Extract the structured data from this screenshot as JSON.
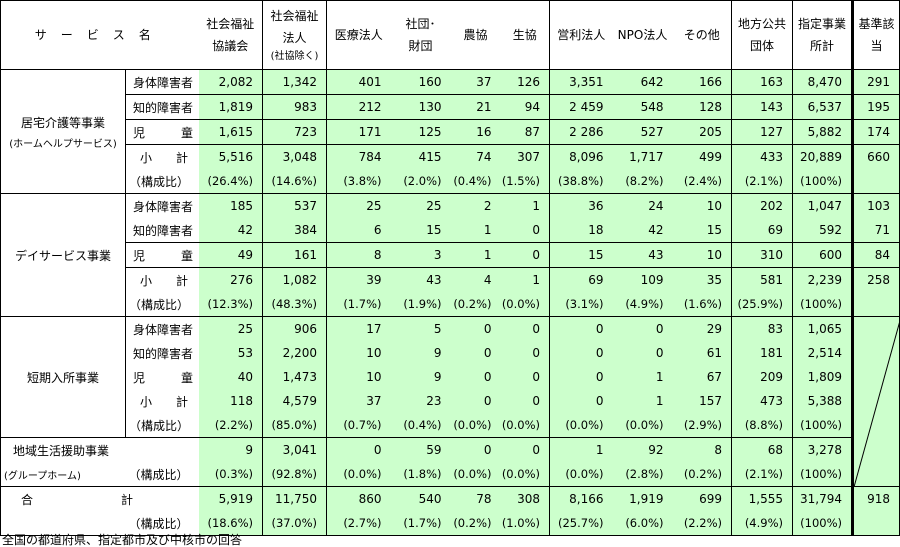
{
  "header": {
    "service_name": "サービス名",
    "columns": [
      {
        "lines": "社会福祉\n協議会"
      },
      {
        "lines": "社会福祉\n法人",
        "note": "(社協除く)"
      },
      {
        "lines": "医療法人"
      },
      {
        "lines": "社団･\n財団"
      },
      {
        "lines": "農協"
      },
      {
        "lines": "生協"
      },
      {
        "lines": "営利法人"
      },
      {
        "lines": "NPO法人"
      },
      {
        "lines": "その他"
      },
      {
        "lines": "地方公共\n団体"
      },
      {
        "lines": "指定事業\n所計"
      },
      {
        "lines": "基準該\n当"
      }
    ]
  },
  "colors": {
    "cell_background": "#ccffcc",
    "border": "#000000"
  },
  "sections": [
    {
      "name": "居宅介護等事業",
      "name_sub": "(ホームヘルプサービス)",
      "rows": [
        {
          "label": "身体障害者",
          "values": [
            "2,082",
            "1,342",
            "401",
            "160",
            "37",
            "126",
            "3,351",
            "642",
            "166",
            "163",
            "8,470"
          ],
          "kijun": "291"
        },
        {
          "label": "知的障害者",
          "values": [
            "1,819",
            "983",
            "212",
            "130",
            "21",
            "94",
            "2 459",
            "548",
            "128",
            "143",
            "6,537"
          ],
          "kijun": "195"
        },
        {
          "label": "児童",
          "values": [
            "1,615",
            "723",
            "171",
            "125",
            "16",
            "87",
            "2 286",
            "527",
            "205",
            "127",
            "5,882"
          ],
          "kijun": "174"
        },
        {
          "label": "小計",
          "values": [
            "5,516",
            "3,048",
            "784",
            "415",
            "74",
            "307",
            "8,096",
            "1,717",
            "499",
            "433",
            "20,889"
          ],
          "kijun": "660"
        },
        {
          "label": "（構成比）",
          "values": [
            "(26.4%)",
            "(14.6%)",
            "(3.8%)",
            "(2.0%)",
            "(0.4%)",
            "(1.5%)",
            "(38.8%)",
            "(8.2%)",
            "(2.4%)",
            "(2.1%)",
            "(100%)"
          ],
          "kijun": ""
        }
      ]
    },
    {
      "name": "デイサービス事業",
      "rows": [
        {
          "label": "身体障害者",
          "values": [
            "185",
            "537",
            "25",
            "25",
            "2",
            "1",
            "36",
            "24",
            "10",
            "202",
            "1,047"
          ],
          "kijun": "103"
        },
        {
          "label": "知的障害者",
          "values": [
            "42",
            "384",
            "6",
            "15",
            "1",
            "0",
            "18",
            "42",
            "15",
            "69",
            "592"
          ],
          "kijun": "71"
        },
        {
          "label": "児童",
          "values": [
            "49",
            "161",
            "8",
            "3",
            "1",
            "0",
            "15",
            "43",
            "10",
            "310",
            "600"
          ],
          "kijun": "84"
        },
        {
          "label": "小計",
          "values": [
            "276",
            "1,082",
            "39",
            "43",
            "4",
            "1",
            "69",
            "109",
            "35",
            "581",
            "2,239"
          ],
          "kijun": "258"
        },
        {
          "label": "（構成比）",
          "values": [
            "(12.3%)",
            "(48.3%)",
            "(1.7%)",
            "(1.9%)",
            "(0.2%)",
            "(0.0%)",
            "(3.1%)",
            "(4.9%)",
            "(1.6%)",
            "(25.9%)",
            "(100%)"
          ],
          "kijun": ""
        }
      ]
    },
    {
      "name": "短期入所事業",
      "rows": [
        {
          "label": "身体障害者",
          "values": [
            "25",
            "906",
            "17",
            "5",
            "0",
            "0",
            "0",
            "0",
            "29",
            "83",
            "1,065"
          ]
        },
        {
          "label": "知的障害者",
          "values": [
            "53",
            "2,200",
            "10",
            "9",
            "0",
            "0",
            "0",
            "0",
            "61",
            "181",
            "2,514"
          ]
        },
        {
          "label": "児童",
          "values": [
            "40",
            "1,473",
            "10",
            "9",
            "0",
            "0",
            "0",
            "1",
            "67",
            "209",
            "1,809"
          ]
        },
        {
          "label": "小計",
          "values": [
            "118",
            "4,579",
            "37",
            "23",
            "0",
            "0",
            "0",
            "1",
            "157",
            "473",
            "5,388"
          ]
        },
        {
          "label": "（構成比）",
          "values": [
            "(2.2%)",
            "(85.0%)",
            "(0.7%)",
            "(0.4%)",
            "(0.0%)",
            "(0.0%)",
            "(0.0%)",
            "(0.0%)",
            "(2.9%)",
            "(8.8%)",
            "(100%)"
          ]
        }
      ]
    },
    {
      "name": "地域生活援助事業",
      "name_sub": "(グループホーム)",
      "rows": [
        {
          "label": "",
          "values": [
            "9",
            "3,041",
            "0",
            "59",
            "0",
            "0",
            "1",
            "92",
            "8",
            "68",
            "3,278"
          ]
        },
        {
          "label": "（構成比）",
          "values": [
            "(0.3%)",
            "(92.8%)",
            "(0.0%)",
            "(1.8%)",
            "(0.0%)",
            "(0.0%)",
            "(0.0%)",
            "(2.8%)",
            "(0.2%)",
            "(2.1%)",
            "(100%)"
          ]
        }
      ]
    },
    {
      "name": "合計",
      "rows": [
        {
          "label": "",
          "values": [
            "5,919",
            "11,750",
            "860",
            "540",
            "78",
            "308",
            "8,166",
            "1,919",
            "699",
            "1,555",
            "31,794"
          ],
          "kijun": "918"
        },
        {
          "label": "（構成比）",
          "values": [
            "(18.6%)",
            "(37.0%)",
            "(2.7%)",
            "(1.7%)",
            "(0.2%)",
            "(1.0%)",
            "(25.7%)",
            "(6.0%)",
            "(2.2%)",
            "(4.9%)",
            "(100%)"
          ],
          "kijun": ""
        }
      ]
    }
  ],
  "footer": "全国の都道府県、指定都市及び中核市の回答"
}
